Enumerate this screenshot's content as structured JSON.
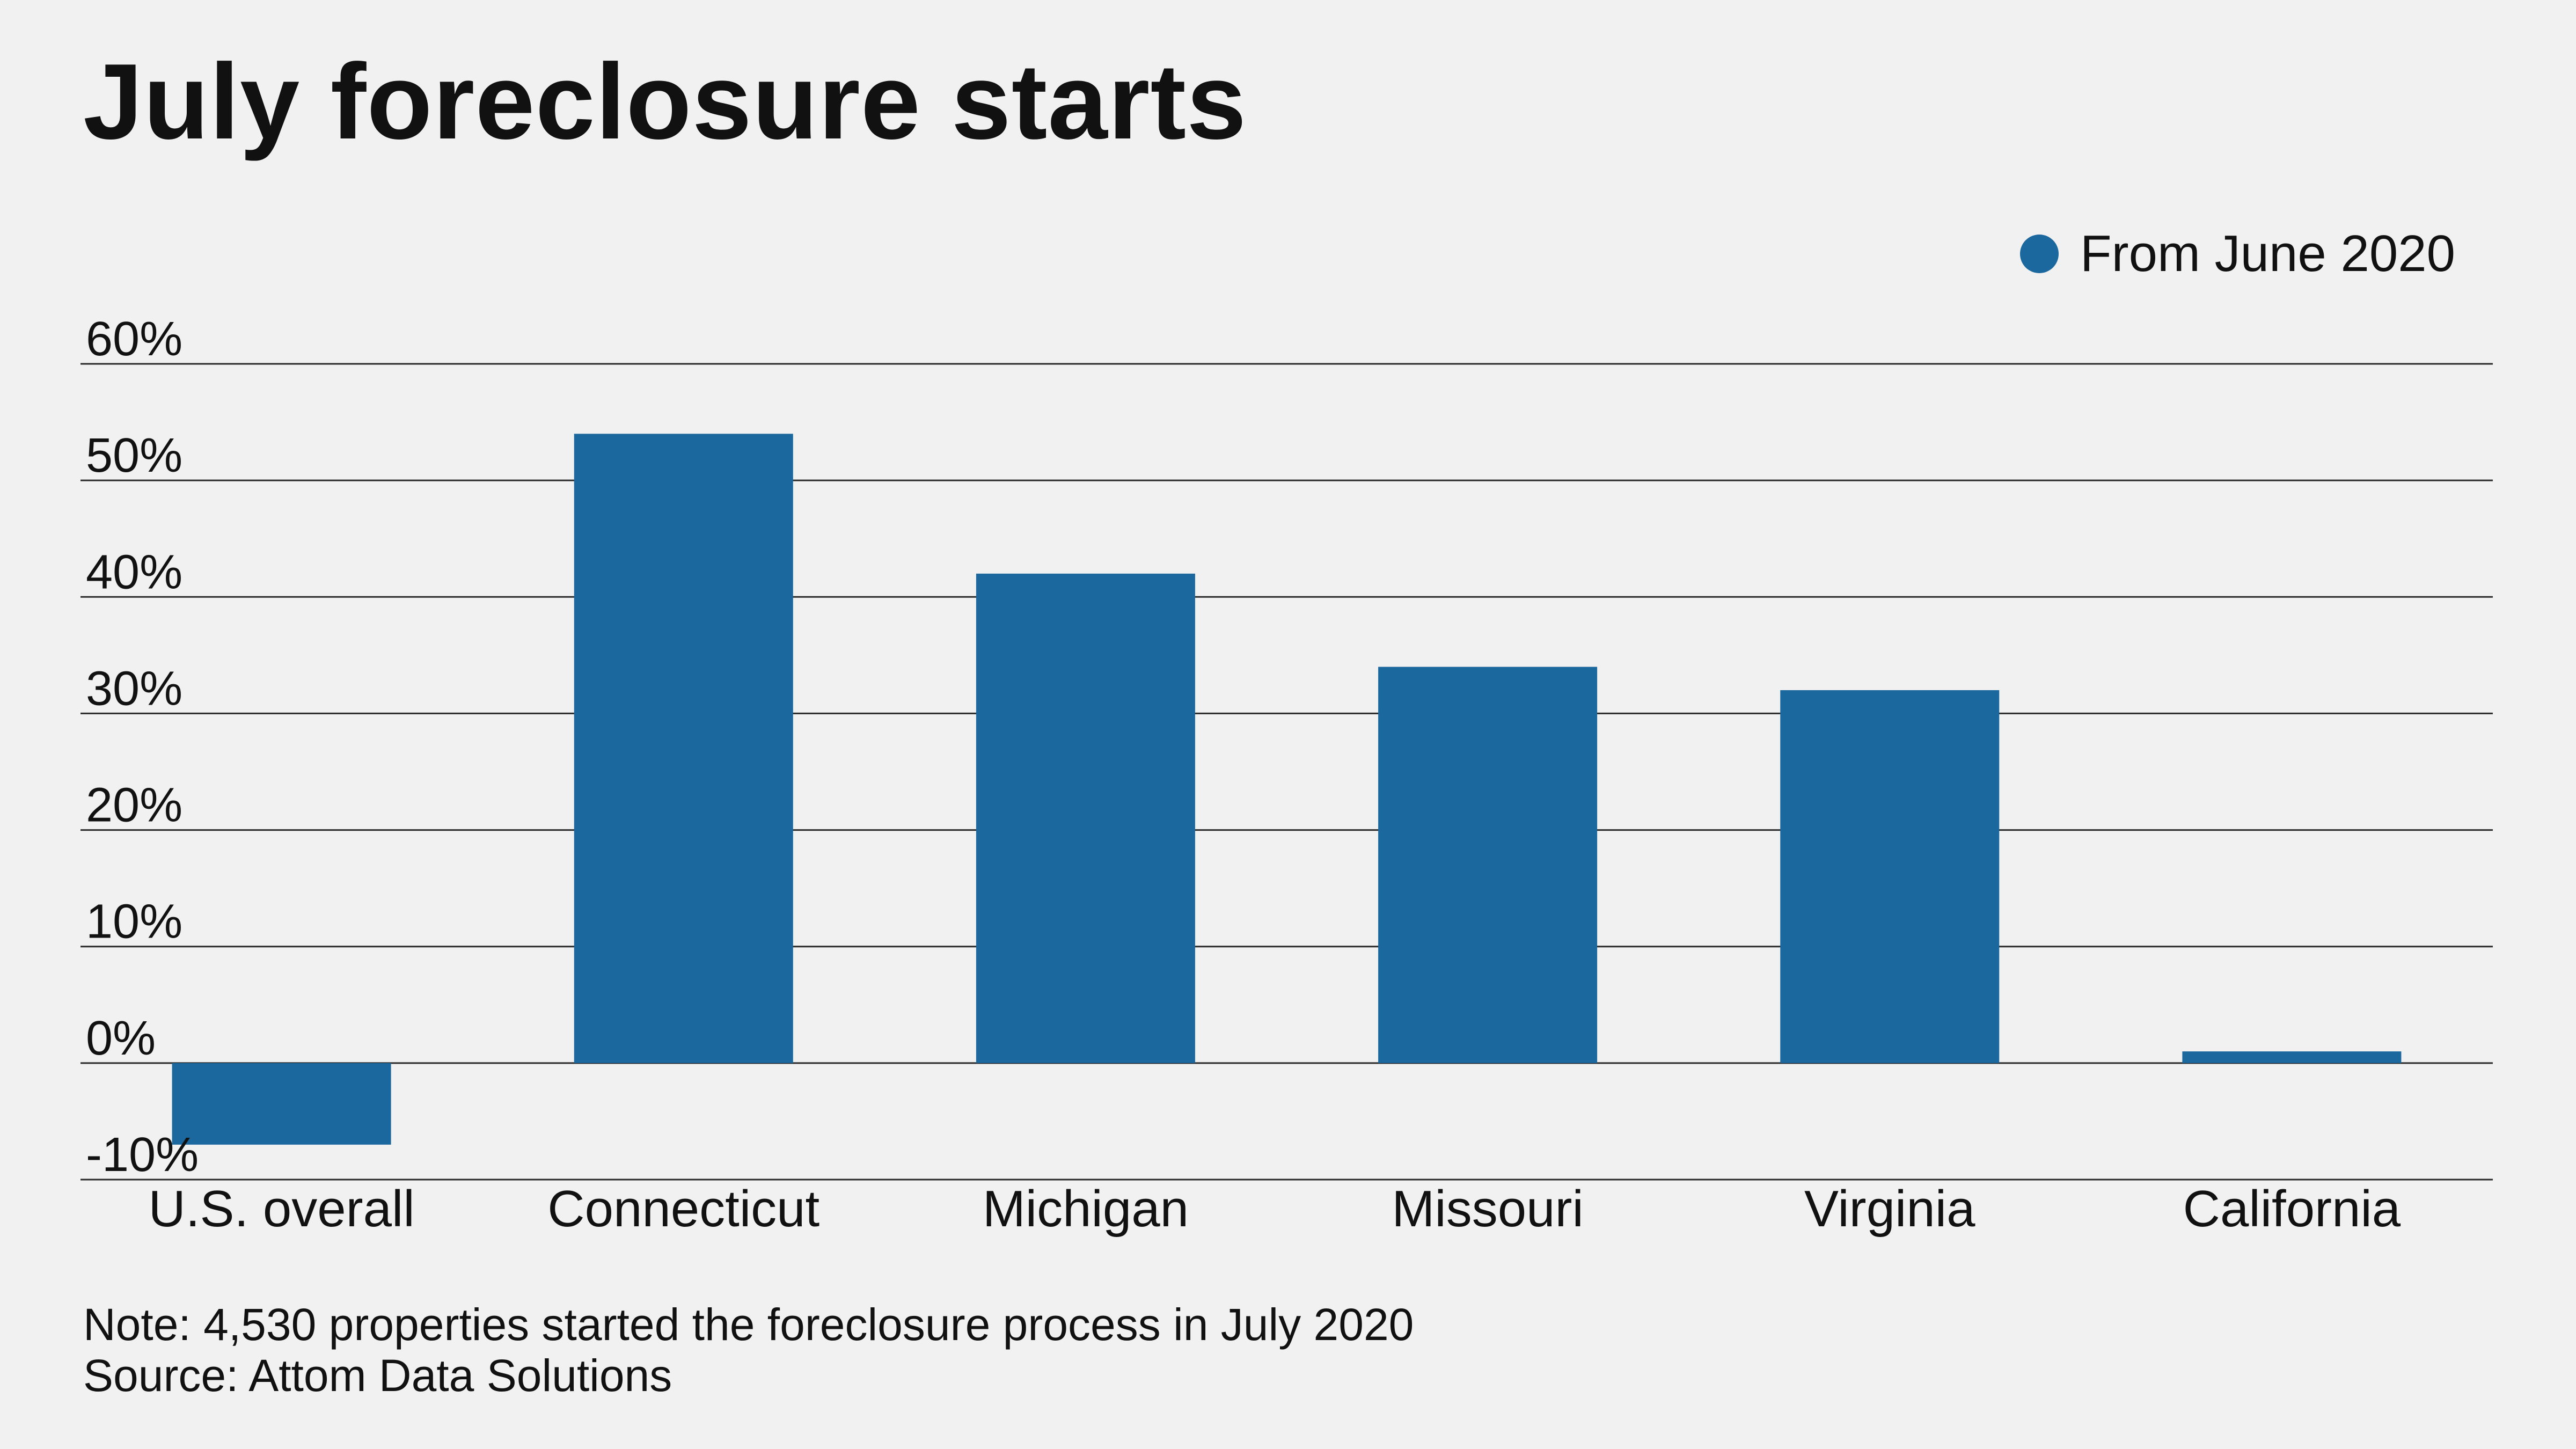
{
  "title": "July foreclosure starts",
  "legend": {
    "label": "From June 2020"
  },
  "colors": {
    "bar": "#1b689e",
    "gridline": "#2a2a2a",
    "background": "#f0f1f0",
    "text": "#111111"
  },
  "chart_data": {
    "type": "bar",
    "title": "July foreclosure starts",
    "categories": [
      "U.S. overall",
      "Connecticut",
      "Michigan",
      "Missouri",
      "Virginia",
      "California"
    ],
    "series": [
      {
        "name": "From June 2020",
        "values": [
          -7,
          54,
          42,
          34,
          32,
          1
        ]
      }
    ],
    "ylim": [
      -10,
      60
    ],
    "yticks": [
      60,
      50,
      40,
      30,
      20,
      10,
      0,
      -10
    ],
    "ytick_labels": [
      "60%",
      "50%",
      "40%",
      "30%",
      "20%",
      "10%",
      "0%",
      "-10%"
    ],
    "grid": true,
    "legend_position": "top-right"
  },
  "footer": {
    "note": "Note: 4,530 properties started the foreclosure process in July 2020",
    "source": "Source: Attom Data Solutions"
  }
}
